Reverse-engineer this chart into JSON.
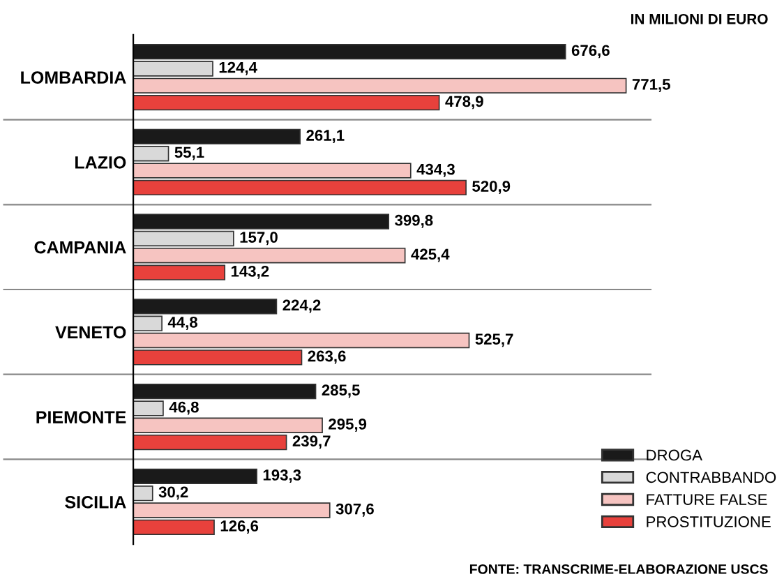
{
  "chart_data": {
    "type": "bar",
    "orientation": "horizontal",
    "categories": [
      "LOMBARDIA",
      "LAZIO",
      "CAMPANIA",
      "VENETO",
      "PIEMONTE",
      "SICILIA"
    ],
    "series": [
      {
        "name": "DROGA",
        "color": "#1a1a1a",
        "values": [
          676.6,
          261.1,
          399.8,
          224.2,
          285.5,
          193.3
        ],
        "value_labels": [
          "676,6",
          "261,1",
          "399,8",
          "224,2",
          "285,5",
          "193,3"
        ]
      },
      {
        "name": "CONTRABBANDO",
        "color": "#d9d9d9",
        "values": [
          124.4,
          55.1,
          157.0,
          44.8,
          46.8,
          30.2
        ],
        "value_labels": [
          "124,4",
          "55,1",
          "157,0",
          "44,8",
          "46,8",
          "30,2"
        ]
      },
      {
        "name": "FATTURE FALSE",
        "color": "#f6c4c1",
        "values": [
          771.5,
          434.3,
          425.4,
          525.7,
          295.9,
          307.6
        ],
        "value_labels": [
          "771,5",
          "434,3",
          "425,4",
          "525,7",
          "295,9",
          "307,6"
        ]
      },
      {
        "name": "PROSTITUZIONE",
        "color": "#e8413c",
        "values": [
          478.9,
          520.9,
          143.2,
          263.6,
          239.7,
          126.6
        ],
        "value_labels": [
          "478,9",
          "520,9",
          "143,2",
          "263,6",
          "239,7",
          "126,6"
        ]
      }
    ],
    "legend": "bottom right",
    "grid": false,
    "annotations": [
      "IN MILIONI DI EURO",
      "FONTE: TRANSCRIME-ELABORAZIONE USCS"
    ]
  }
}
